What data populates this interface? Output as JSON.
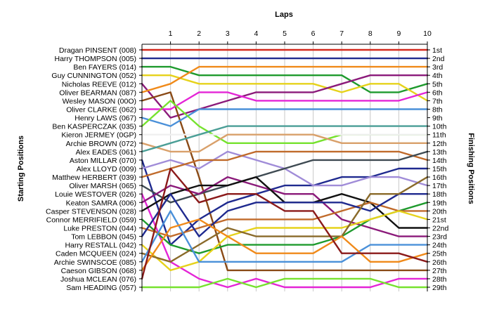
{
  "chart_data": {
    "type": "line",
    "title": "Laps",
    "ylabel_left": "Starting Positions",
    "ylabel_right": "Finishing Positions",
    "x": [
      0,
      1,
      2,
      3,
      4,
      5,
      6,
      7,
      8,
      9,
      10
    ],
    "x_tick_labels": [
      "1",
      "2",
      "3",
      "4",
      "5",
      "6",
      "7",
      "8",
      "9",
      "10"
    ],
    "y_tick_labels_right": [
      "1st",
      "2nd",
      "3rd",
      "4th",
      "5th",
      "6th",
      "7th",
      "8th",
      "9th",
      "10th",
      "11th",
      "12th",
      "13th",
      "14th",
      "15th",
      "16th",
      "17th",
      "18th",
      "19th",
      "20th",
      "21st",
      "22nd",
      "23rd",
      "24th",
      "25th",
      "26th",
      "27th",
      "28th",
      "29th"
    ],
    "grid": true,
    "legend": "none",
    "series": [
      {
        "name": "Dragan PINSENT (008)",
        "color": "#d42a1f",
        "values": [
          1,
          1,
          1,
          1,
          1,
          1,
          1,
          1,
          1,
          1,
          1
        ]
      },
      {
        "name": "Harry THOMPSON (005)",
        "color": "#1f2a8f",
        "values": [
          2,
          2,
          2,
          2,
          2,
          2,
          2,
          2,
          2,
          2,
          2
        ]
      },
      {
        "name": "Ben FAYERS (014)",
        "color": "#1e9a2d",
        "values": [
          3,
          3,
          4,
          4,
          4,
          4,
          4,
          4,
          6,
          6,
          5
        ]
      },
      {
        "name": "Guy CUNNINGTON (052)",
        "color": "#e6d21b",
        "values": [
          4,
          4,
          5,
          5,
          5,
          5,
          5,
          6,
          5,
          5,
          7
        ]
      },
      {
        "name": "Nicholas REEVE (012)",
        "color": "#8b1a7a",
        "values": [
          5,
          9,
          8,
          7,
          6,
          6,
          6,
          5,
          4,
          4,
          4
        ]
      },
      {
        "name": "Oliver BEARMAN (087)",
        "color": "#f08a1a",
        "values": [
          6,
          5,
          3,
          3,
          3,
          3,
          3,
          3,
          3,
          3,
          3
        ]
      },
      {
        "name": "Wesley MASON (00O)",
        "color": "#8a4a16",
        "values": [
          7,
          6,
          16,
          27,
          27,
          27,
          27,
          27,
          27,
          27,
          27
        ]
      },
      {
        "name": "Oliver CLARKE (062)",
        "color": "#e425d6",
        "values": [
          8,
          8,
          6,
          6,
          7,
          7,
          7,
          7,
          7,
          7,
          6
        ]
      },
      {
        "name": "Henry LAWS (067)",
        "color": "#4a90d9",
        "values": [
          9,
          10,
          8,
          8,
          8,
          8,
          8,
          8,
          8,
          8,
          8
        ]
      },
      {
        "name": "Ben KASPERCZAK (035)",
        "color": "#76e22e",
        "values": [
          10,
          7,
          10,
          12,
          12,
          12,
          12,
          11,
          11,
          11,
          11
        ]
      },
      {
        "name": "Kieron JERMEY (0GP)",
        "color": "#f0f0f0",
        "values": [
          11,
          11,
          11,
          11,
          11,
          11,
          11,
          11,
          11,
          11,
          11
        ]
      },
      {
        "name": "Archie BROWN (072)",
        "color": "#d9a06a",
        "values": [
          12,
          13,
          13,
          11,
          11,
          11,
          11,
          12,
          12,
          12,
          12
        ]
      },
      {
        "name": "Alex EADES (061)",
        "color": "#4a9e96",
        "values": [
          13,
          12,
          11,
          10,
          10,
          10,
          10,
          10,
          10,
          10,
          10
        ]
      },
      {
        "name": "Aston MILLAR (070)",
        "color": "#1f2a8f",
        "values": [
          14,
          24,
          21,
          19,
          18,
          17,
          17,
          16,
          16,
          15,
          15
        ]
      },
      {
        "name": "Alex LLOYD (009)",
        "color": "#a08cd8",
        "values": [
          15,
          14,
          15,
          13,
          14,
          15,
          17,
          17,
          16,
          16,
          17
        ]
      },
      {
        "name": "Matthew HERBERT (039)",
        "color": "#c06a2a",
        "values": [
          16,
          15,
          14,
          14,
          13,
          13,
          13,
          13,
          13,
          13,
          14
        ]
      },
      {
        "name": "Oliver MARSH (065)",
        "color": "#3e4a52",
        "values": [
          17,
          19,
          18,
          17,
          16,
          15,
          14,
          14,
          14,
          14,
          13
        ]
      },
      {
        "name": "Louie WESTOVER (026)",
        "color": "#e425d6",
        "values": [
          18,
          26,
          28,
          29,
          28,
          29,
          29,
          29,
          29,
          28,
          28
        ]
      },
      {
        "name": "Keaton SAMRA (006)",
        "color": "#8b1a7a",
        "values": [
          19,
          17,
          18,
          16,
          17,
          18,
          18,
          21,
          22,
          23,
          23
        ]
      },
      {
        "name": "Casper STEVENSON (028)",
        "color": "#111111",
        "values": [
          20,
          18,
          17,
          17,
          16,
          19,
          19,
          18,
          19,
          22,
          22
        ]
      },
      {
        "name": "Connor MERRIFIELD (059)",
        "color": "#1e9a2d",
        "values": [
          21,
          24,
          25,
          24,
          24,
          24,
          24,
          23,
          21,
          20,
          19
        ]
      },
      {
        "name": "Luke PRESTON (044)",
        "color": "#c06a2a",
        "values": [
          22,
          23,
          22,
          21,
          21,
          21,
          21,
          20,
          19,
          20,
          20
        ]
      },
      {
        "name": "Tom LEBBON (045)",
        "color": "#1f2a8f",
        "values": [
          23,
          18,
          23,
          20,
          19,
          19,
          19,
          19,
          20,
          18,
          18
        ]
      },
      {
        "name": "Harry RESTALL (042)",
        "color": "#e6d21b",
        "values": [
          24,
          27,
          26,
          23,
          22,
          22,
          22,
          22,
          21,
          20,
          21
        ]
      },
      {
        "name": "Caden MCQUEEN (024)",
        "color": "#8a6a2a",
        "values": [
          25,
          26,
          24,
          22,
          23,
          23,
          23,
          23,
          18,
          18,
          16
        ]
      },
      {
        "name": "Archie SWINSCOE (085)",
        "color": "#4a90d9",
        "values": [
          26,
          20,
          26,
          26,
          26,
          26,
          26,
          26,
          24,
          24,
          24
        ]
      },
      {
        "name": "Caeson GIBSON (068)",
        "color": "#f08a1a",
        "values": [
          27,
          22,
          21,
          23,
          25,
          25,
          25,
          23,
          26,
          26,
          25
        ]
      },
      {
        "name": "Joshua MCLEAN (076)",
        "color": "#8b1a1a",
        "values": [
          28,
          15,
          19,
          18,
          18,
          20,
          20,
          25,
          25,
          25,
          26
        ]
      },
      {
        "name": "Sam HEADING (057)",
        "color": "#76e22e",
        "values": [
          29,
          29,
          29,
          28,
          29,
          28,
          28,
          28,
          28,
          29,
          29
        ]
      }
    ]
  }
}
